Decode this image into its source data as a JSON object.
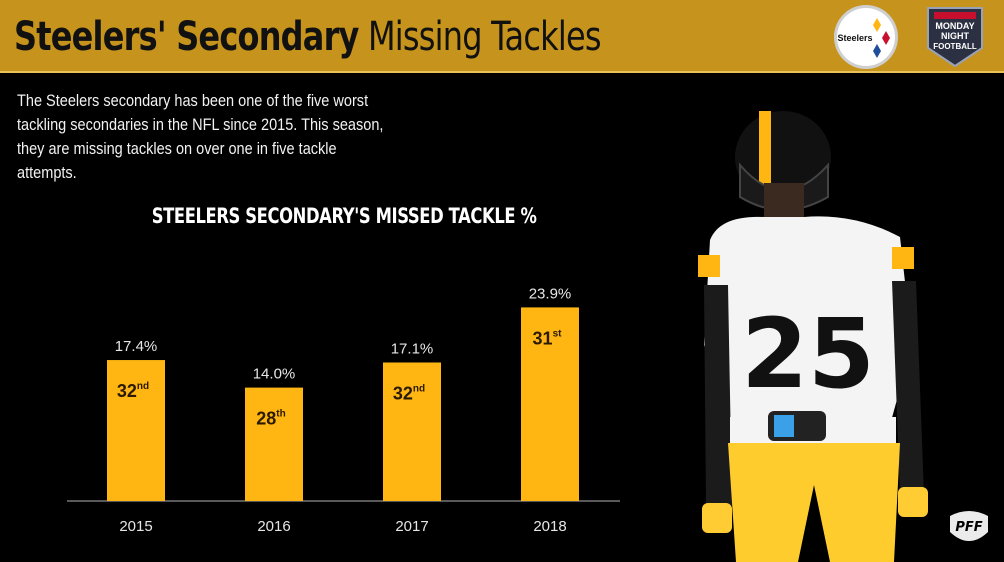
{
  "header": {
    "title_bold": "Steelers' Secondary",
    "title_light": "Missing Tackles",
    "team_logo_text": "Steelers",
    "broadcast_logo_lines": [
      "MONDAY",
      "NIGHT",
      "FOOTBALL"
    ]
  },
  "description": "The Steelers secondary has been one of the five worst tackling secondaries in the NFL since 2015. This season, they are missing tackles on over one in five tackle attempts.",
  "player": {
    "jersey_number": "25"
  },
  "watermark": "PFF",
  "colors": {
    "header_bg": "#c6931c",
    "bar": "#ffb612",
    "background": "#000000",
    "rank_text": "#2a1a00"
  },
  "chart_data": {
    "type": "bar",
    "title": "STEELERS SECONDARY'S MISSED TACKLE %",
    "categories": [
      "2015",
      "2016",
      "2017",
      "2018"
    ],
    "values": [
      17.4,
      14.0,
      17.1,
      23.9
    ],
    "value_labels": [
      "17.4%",
      "14.0%",
      "17.1%",
      "23.9%"
    ],
    "ranks": [
      {
        "num": "32",
        "suffix": "nd"
      },
      {
        "num": "28",
        "suffix": "th"
      },
      {
        "num": "32",
        "suffix": "nd"
      },
      {
        "num": "31",
        "suffix": "st"
      }
    ],
    "ylim": [
      0,
      30
    ],
    "xlabel": "",
    "ylabel": "",
    "grid": false
  }
}
